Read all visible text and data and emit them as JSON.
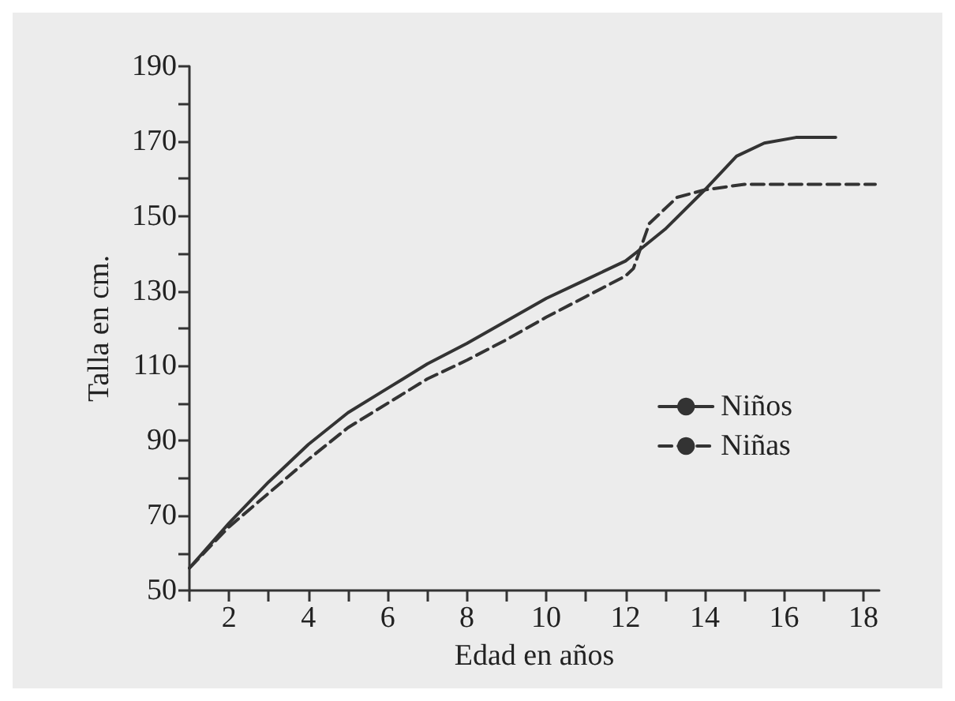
{
  "chart_data": {
    "type": "line",
    "xlabel": "Edad en años",
    "ylabel": "Talla en cm.",
    "xlim": [
      1,
      18.4
    ],
    "xticks": [
      {
        "value": 1,
        "label": null
      },
      2,
      {
        "value": 3,
        "label": null
      },
      4,
      {
        "value": 5,
        "label": null
      },
      6,
      {
        "value": 7,
        "label": null
      },
      8,
      {
        "value": 9,
        "label": null
      },
      10,
      {
        "value": 11,
        "label": null
      },
      12,
      {
        "value": 13,
        "label": null
      },
      14,
      {
        "value": 15,
        "label": null
      },
      16,
      {
        "value": 17,
        "label": null
      },
      18
    ],
    "ylim": [
      50,
      190
    ],
    "yticks": [
      50,
      {
        "value": 60,
        "label": null
      },
      70,
      {
        "value": 80,
        "label": null
      },
      90,
      {
        "value": 100,
        "label": null
      },
      110,
      {
        "value": 120,
        "label": null
      },
      130,
      {
        "value": 140,
        "label": null
      },
      150,
      {
        "value": 160,
        "label": null
      },
      170,
      {
        "value": 180,
        "label": null
      },
      190
    ],
    "grid": false,
    "legend": "right",
    "marker": "none",
    "series": [
      {
        "name": "Niños",
        "color": "#333333",
        "line_style": "solid",
        "x": [
          1,
          2,
          3,
          4,
          5,
          6,
          7,
          8,
          9,
          10,
          11,
          12,
          12.3,
          13,
          14,
          14.8,
          15.5,
          16.3,
          17.3
        ],
        "values": [
          56,
          68,
          79,
          89,
          97.5,
          104,
          110.5,
          116,
          122,
          128,
          133,
          138,
          140.5,
          146.5,
          157,
          166,
          169.5,
          171,
          171
        ]
      },
      {
        "name": "Niñas",
        "color": "#333333",
        "line_style": "dashed",
        "x": [
          1,
          2,
          3,
          4,
          5,
          6,
          7,
          8,
          9,
          10,
          11,
          12,
          12.2,
          12.6,
          13.3,
          14,
          15,
          18.3
        ],
        "values": [
          56,
          67,
          76,
          85,
          93.5,
          100,
          106.5,
          111.5,
          117,
          123,
          128.5,
          134,
          136,
          148,
          155,
          157,
          158.5,
          158.5
        ]
      }
    ]
  }
}
